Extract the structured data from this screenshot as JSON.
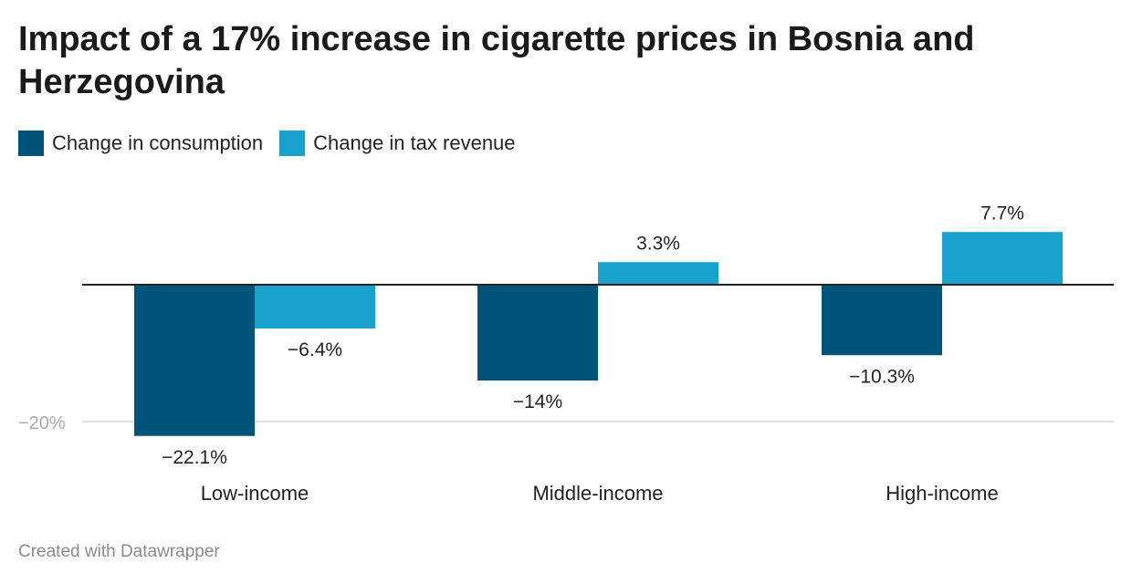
{
  "title": "Impact of a 17% increase in cigarette prices in Bosnia and Herzegovina",
  "footer": "Created with Datawrapper",
  "colors": {
    "consumption": "#00547a",
    "tax_revenue": "#18a1cd",
    "grid": "#e0e0e0",
    "baseline": "#222222",
    "tick": "#aaaaaa"
  },
  "chart_data": {
    "type": "bar",
    "categories": [
      "Low-income",
      "Middle-income",
      "High-income"
    ],
    "series": [
      {
        "name": "Change in consumption",
        "values": [
          -22.1,
          -14,
          -10.3
        ],
        "labels": [
          "−22.1%",
          "−14%",
          "−10.3%"
        ]
      },
      {
        "name": "Change in tax revenue",
        "values": [
          -6.4,
          3.3,
          7.7
        ],
        "labels": [
          "−6.4%",
          "3.3%",
          "7.7%"
        ]
      }
    ],
    "yticks": [
      {
        "value": -20,
        "label": "−20%"
      }
    ],
    "ylim": [
      -25,
      10
    ],
    "legend": "top-left",
    "grid": true
  }
}
